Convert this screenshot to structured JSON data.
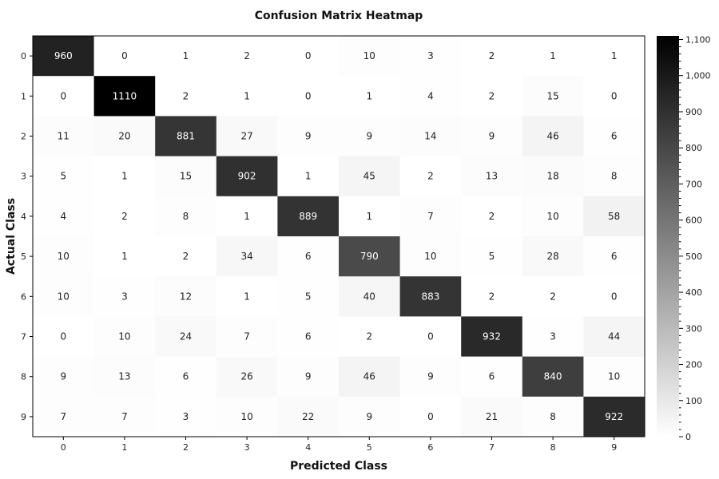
{
  "chart_data": {
    "type": "heatmap",
    "title": "Confusion Matrix Heatmap",
    "xlabel": "Predicted Class",
    "ylabel": "Actual Class",
    "x_categories": [
      "0",
      "1",
      "2",
      "3",
      "4",
      "5",
      "6",
      "7",
      "8",
      "9"
    ],
    "y_categories": [
      "0",
      "1",
      "2",
      "3",
      "4",
      "5",
      "6",
      "7",
      "8",
      "9"
    ],
    "values": [
      [
        960,
        0,
        1,
        2,
        0,
        10,
        3,
        2,
        1,
        1
      ],
      [
        0,
        1110,
        2,
        1,
        0,
        1,
        4,
        2,
        15,
        0
      ],
      [
        11,
        20,
        881,
        27,
        9,
        9,
        14,
        9,
        46,
        6
      ],
      [
        5,
        1,
        15,
        902,
        1,
        45,
        2,
        13,
        18,
        8
      ],
      [
        4,
        2,
        8,
        1,
        889,
        1,
        7,
        2,
        10,
        58
      ],
      [
        10,
        1,
        2,
        34,
        6,
        790,
        10,
        5,
        28,
        6
      ],
      [
        10,
        3,
        12,
        1,
        5,
        40,
        883,
        2,
        2,
        0
      ],
      [
        0,
        10,
        24,
        7,
        6,
        2,
        0,
        932,
        3,
        44
      ],
      [
        9,
        13,
        6,
        26,
        9,
        46,
        9,
        6,
        840,
        10
      ],
      [
        7,
        7,
        3,
        10,
        22,
        9,
        0,
        21,
        8,
        922
      ]
    ],
    "colorscale": {
      "low_color": "#ffffff",
      "high_color": "#000000",
      "range": [
        0,
        1110
      ],
      "tick_values": [
        0,
        100,
        200,
        300,
        400,
        500,
        600,
        700,
        800,
        900,
        1000,
        1100
      ],
      "tick_labels": [
        "0",
        "100",
        "200",
        "300",
        "400",
        "500",
        "600",
        "700",
        "800",
        "900",
        "1,000",
        "1,100"
      ]
    }
  }
}
